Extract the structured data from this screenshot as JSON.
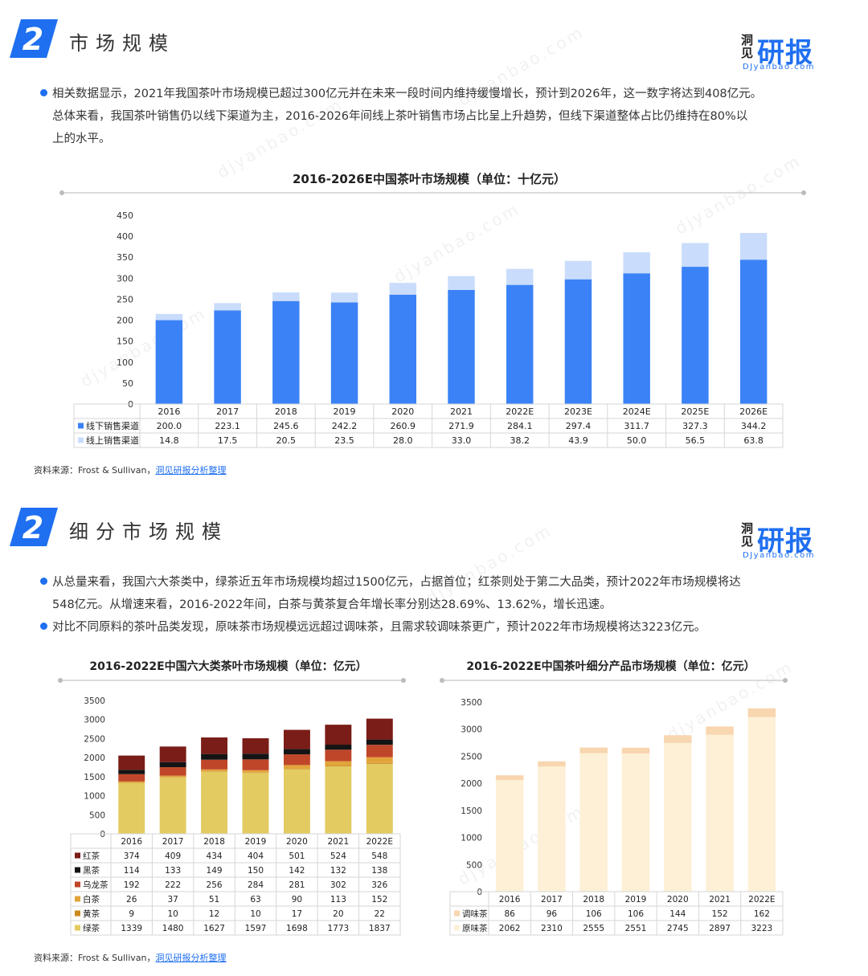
{
  "section1": {
    "badge": "2",
    "title": "市场规模",
    "logo": {
      "mark": "洞见",
      "big": "研报",
      "small": "DJyanbao.com"
    },
    "paragraph_lines": [
      "相关数据显示，2021年我国茶叶市场规模已超过300亿元并在未来一段时间内维持缓慢增长，预计到2026年，这一数字将达到408亿元。",
      "总体来看，我国茶叶销售仍以线下渠道为主，2016-2026年间线上茶叶销售市场占比呈上升趋势，但线下渠道整体占比仍维持在80%以",
      "上的水平。"
    ],
    "source_prefix": "资料来源：Frost & Sullivan，",
    "source_link": "洞见研报分析整理"
  },
  "section2": {
    "badge": "2",
    "title": "细分市场规模",
    "logo": {
      "mark": "洞见",
      "big": "研报",
      "small": "DJyanbao.com"
    },
    "bullet1_lines": [
      "从总量来看，我国六大茶类中，绿茶近五年市场规模均超过1500亿元，占据首位；红茶则处于第二大品类，预计2022年市场规模将达",
      "548亿元。从增速来看，2016-2022年间，白茶与黄茶复合年增长率分别达28.69%、13.62%，增长迅速。"
    ],
    "bullet2_lines": [
      "对比不同原料的茶叶品类发现，原味茶市场规模远远超过调味茶，且需求较调味茶更广，预计2022年市场规模将达3223亿元。"
    ],
    "source_prefix": "资料来源：Frost & Sullivan，",
    "source_link": "洞见研报分析整理"
  },
  "watermark": "djyanbao.com",
  "chart_data": [
    {
      "type": "bar",
      "stacked": true,
      "title": "2016-2026E中国茶叶市场规模（单位：十亿元）",
      "categories": [
        "2016",
        "2017",
        "2018",
        "2019",
        "2020",
        "2021",
        "2022E",
        "2023E",
        "2024E",
        "2025E",
        "2026E"
      ],
      "series": [
        {
          "name": "线下销售渠道",
          "values": [
            200.0,
            223.1,
            245.6,
            242.2,
            260.9,
            271.9,
            284.1,
            297.4,
            311.7,
            327.3,
            344.2
          ],
          "color": "#3b82f6"
        },
        {
          "name": "线上销售渠道",
          "values": [
            14.8,
            17.5,
            20.5,
            23.5,
            28.0,
            33.0,
            38.2,
            43.9,
            50.0,
            56.5,
            63.8
          ],
          "color": "#c9dcfb"
        }
      ],
      "ylim": [
        0,
        450
      ],
      "yticks": [
        0,
        50,
        100,
        150,
        200,
        250,
        300,
        350,
        400,
        450
      ],
      "legend": "data-table"
    },
    {
      "type": "bar",
      "stacked": true,
      "title": "2016-2022E中国六大类茶叶市场规模（单位：亿元）",
      "categories": [
        "2016",
        "2017",
        "2018",
        "2019",
        "2020",
        "2021",
        "2022E"
      ],
      "series": [
        {
          "name": "红茶",
          "values": [
            374,
            409,
            434,
            404,
            501,
            524,
            548
          ],
          "color": "#7a1c17"
        },
        {
          "name": "黑茶",
          "values": [
            114,
            133,
            149,
            150,
            142,
            132,
            138
          ],
          "color": "#141414"
        },
        {
          "name": "乌龙茶",
          "values": [
            192,
            222,
            256,
            284,
            281,
            302,
            326
          ],
          "color": "#c0462a"
        },
        {
          "name": "白茶",
          "values": [
            26,
            37,
            51,
            63,
            90,
            113,
            152
          ],
          "color": "#e2a43a"
        },
        {
          "name": "黄茶",
          "values": [
            9,
            10,
            12,
            10,
            17,
            20,
            22
          ],
          "color": "#c98a1c"
        },
        {
          "name": "绿茶",
          "values": [
            1339,
            1480,
            1627,
            1597,
            1698,
            1773,
            1837
          ],
          "color": "#e3cb62"
        }
      ],
      "ylim": [
        0,
        3500
      ],
      "yticks": [
        0,
        500,
        1000,
        1500,
        2000,
        2500,
        3000,
        3500
      ],
      "legend": "data-table"
    },
    {
      "type": "bar",
      "stacked": true,
      "title": "2016-2022E中国茶叶细分产品市场规模（单位：亿元）",
      "categories": [
        "2016",
        "2017",
        "2018",
        "2019",
        "2020",
        "2021",
        "2022E"
      ],
      "series": [
        {
          "name": "调味茶",
          "values": [
            86,
            96,
            106,
            106,
            144,
            152,
            162
          ],
          "color": "#f8d6b0"
        },
        {
          "name": "原味茶",
          "values": [
            2062,
            2310,
            2555,
            2551,
            2745,
            2897,
            3223
          ],
          "color": "#fdf0d6"
        }
      ],
      "ylim": [
        0,
        3500
      ],
      "yticks": [
        0,
        500,
        1000,
        1500,
        2000,
        2500,
        3000,
        3500
      ],
      "legend": "data-table"
    }
  ]
}
